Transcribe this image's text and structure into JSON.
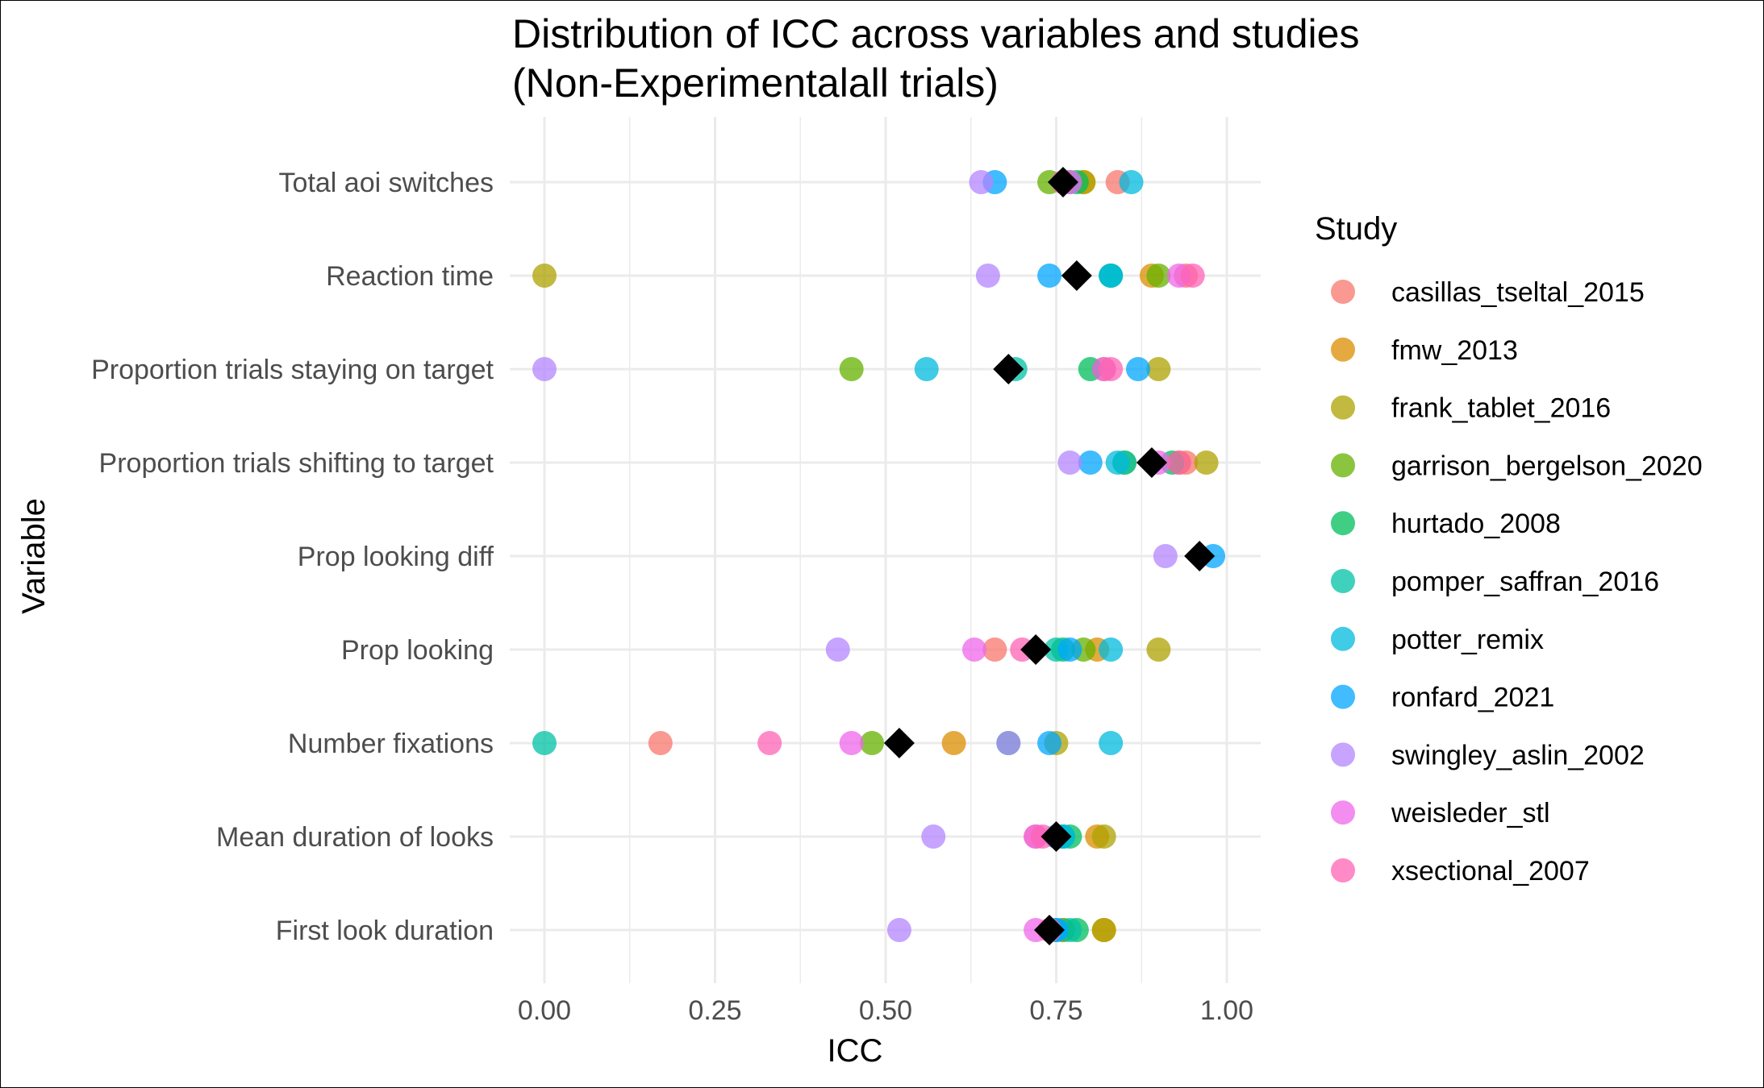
{
  "chart_data": {
    "type": "scatter",
    "title": "Distribution of ICC across variables and studies",
    "subtitle": "(Non-Experimentalall trials)",
    "xlabel": "ICC",
    "ylabel": "Variable",
    "xlim": [
      -0.05,
      1.05
    ],
    "x_ticks": [
      0.0,
      0.25,
      0.5,
      0.75,
      1.0
    ],
    "x_tick_labels": [
      "0.00",
      "0.25",
      "0.50",
      "0.75",
      "1.00"
    ],
    "grid": true,
    "legend_title": "Study",
    "legend_position": "right",
    "categories": [
      "First look duration",
      "Mean duration of looks",
      "Number fixations",
      "Prop looking",
      "Prop looking diff",
      "Proportion trials shifting to target",
      "Proportion trials staying on target",
      "Reaction time",
      "Total aoi switches"
    ],
    "series": [
      {
        "name": "casillas_tseltal_2015",
        "color": "#F8766D",
        "points": [
          [
            "Total aoi switches",
            0.84
          ],
          [
            "Reaction time",
            0.94
          ],
          [
            "Proportion trials shifting to target",
            0.94
          ],
          [
            "Prop looking",
            0.66
          ],
          [
            "Number fixations",
            0.17
          ],
          [
            "Mean duration of looks",
            0.72
          ],
          [
            "First look duration",
            0.76
          ]
        ]
      },
      {
        "name": "fmw_2013",
        "color": "#DB8E00",
        "points": [
          [
            "Total aoi switches",
            0.79
          ],
          [
            "Reaction time",
            0.89
          ],
          [
            "Proportion trials staying on target",
            0.82
          ],
          [
            "Proportion trials shifting to target",
            0.93
          ],
          [
            "Prop looking",
            0.81
          ],
          [
            "Number fixations",
            0.6
          ],
          [
            "Mean duration of looks",
            0.81
          ],
          [
            "First look duration",
            0.82
          ]
        ]
      },
      {
        "name": "frank_tablet_2016",
        "color": "#AEA200",
        "points": [
          [
            "Total aoi switches",
            0.79
          ],
          [
            "Reaction time",
            0.0
          ],
          [
            "Proportion trials staying on target",
            0.9
          ],
          [
            "Proportion trials shifting to target",
            0.97
          ],
          [
            "Prop looking",
            0.9
          ],
          [
            "Number fixations",
            0.75
          ],
          [
            "Mean duration of looks",
            0.82
          ],
          [
            "First look duration",
            0.82
          ]
        ]
      },
      {
        "name": "garrison_bergelson_2020",
        "color": "#64B200",
        "points": [
          [
            "Total aoi switches",
            0.74
          ],
          [
            "Reaction time",
            0.9
          ],
          [
            "Proportion trials staying on target",
            0.45
          ],
          [
            "Proportion trials shifting to target",
            0.85
          ],
          [
            "Prop looking",
            0.79
          ],
          [
            "Number fixations",
            0.48
          ],
          [
            "Mean duration of looks",
            0.76
          ],
          [
            "First look duration",
            0.76
          ]
        ]
      },
      {
        "name": "hurtado_2008",
        "color": "#00BD5C",
        "points": [
          [
            "Total aoi switches",
            0.78
          ],
          [
            "Reaction time",
            0.83
          ],
          [
            "Proportion trials staying on target",
            0.8
          ],
          [
            "Proportion trials shifting to target",
            0.92
          ],
          [
            "Prop looking",
            0.76
          ],
          [
            "Number fixations",
            0.68
          ],
          [
            "Mean duration of looks",
            0.77
          ],
          [
            "First look duration",
            0.78
          ]
        ]
      },
      {
        "name": "pomper_saffran_2016",
        "color": "#00C1A7",
        "points": [
          [
            "Total aoi switches",
            0.77
          ],
          [
            "Reaction time",
            0.83
          ],
          [
            "Proportion trials staying on target",
            0.69
          ],
          [
            "Proportion trials shifting to target",
            0.85
          ],
          [
            "Prop looking",
            0.75
          ],
          [
            "Number fixations",
            0.0
          ],
          [
            "Mean duration of looks",
            0.76
          ],
          [
            "First look duration",
            0.77
          ]
        ]
      },
      {
        "name": "potter_remix",
        "color": "#00BADE",
        "points": [
          [
            "Total aoi switches",
            0.86
          ],
          [
            "Reaction time",
            0.83
          ],
          [
            "Proportion trials staying on target",
            0.56
          ],
          [
            "Proportion trials shifting to target",
            0.84
          ],
          [
            "Prop looking",
            0.83
          ],
          [
            "Number fixations",
            0.83
          ],
          [
            "Mean duration of looks",
            0.76
          ],
          [
            "First look duration",
            0.75
          ]
        ]
      },
      {
        "name": "ronfard_2021",
        "color": "#00A6FF",
        "points": [
          [
            "Total aoi switches",
            0.66
          ],
          [
            "Reaction time",
            0.74
          ],
          [
            "Proportion trials staying on target",
            0.87
          ],
          [
            "Proportion trials shifting to target",
            0.8
          ],
          [
            "Prop looking diff",
            0.98
          ],
          [
            "Prop looking",
            0.77
          ],
          [
            "Number fixations",
            0.74
          ],
          [
            "Mean duration of looks",
            0.75
          ],
          [
            "First look duration",
            0.75
          ]
        ]
      },
      {
        "name": "swingley_aslin_2002",
        "color": "#B385FF",
        "points": [
          [
            "Total aoi switches",
            0.64
          ],
          [
            "Reaction time",
            0.65
          ],
          [
            "Proportion trials staying on target",
            0.0
          ],
          [
            "Proportion trials shifting to target",
            0.77
          ],
          [
            "Prop looking diff",
            0.91
          ],
          [
            "Prop looking",
            0.43
          ],
          [
            "Number fixations",
            0.68
          ],
          [
            "Mean duration of looks",
            0.57
          ],
          [
            "First look duration",
            0.52
          ]
        ]
      },
      {
        "name": "weisleder_stl",
        "color": "#EF67EB",
        "points": [
          [
            "Total aoi switches",
            0.77
          ],
          [
            "Reaction time",
            0.93
          ],
          [
            "Proportion trials staying on target",
            0.82
          ],
          [
            "Proportion trials shifting to target",
            0.9
          ],
          [
            "Prop looking",
            0.63
          ],
          [
            "Number fixations",
            0.45
          ],
          [
            "Mean duration of looks",
            0.72
          ],
          [
            "First look duration",
            0.72
          ]
        ]
      },
      {
        "name": "xsectional_2007",
        "color": "#FF63B6",
        "points": [
          [
            "Total aoi switches",
            0.76
          ],
          [
            "Reaction time",
            0.95
          ],
          [
            "Proportion trials staying on target",
            0.83
          ],
          [
            "Proportion trials shifting to target",
            0.93
          ],
          [
            "Prop looking",
            0.7
          ],
          [
            "Number fixations",
            0.33
          ],
          [
            "Mean duration of looks",
            0.73
          ],
          [
            "First look duration",
            0.74
          ]
        ]
      }
    ],
    "summary_markers": {
      "shape": "diamond",
      "color": "#000000",
      "points": [
        [
          "Total aoi switches",
          0.76
        ],
        [
          "Reaction time",
          0.78
        ],
        [
          "Proportion trials staying on target",
          0.68
        ],
        [
          "Proportion trials shifting to target",
          0.89
        ],
        [
          "Prop looking diff",
          0.96
        ],
        [
          "Prop looking",
          0.72
        ],
        [
          "Number fixations",
          0.52
        ],
        [
          "Mean duration of looks",
          0.75
        ],
        [
          "First look duration",
          0.74
        ]
      ]
    }
  }
}
